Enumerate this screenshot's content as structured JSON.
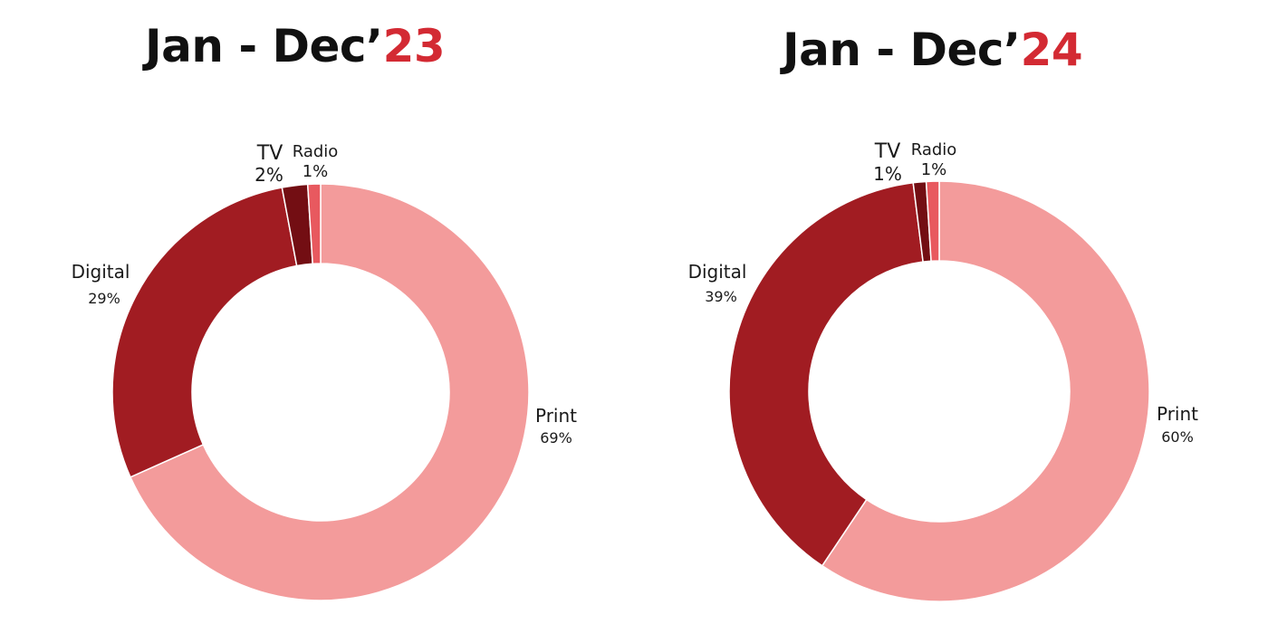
{
  "chart_data": [
    {
      "type": "pie",
      "title_prefix": "Jan - Dec’",
      "title_year": "23",
      "colors": {
        "Print": "#f39b9b",
        "Digital": "#a11c22",
        "TV": "#730e13",
        "Radio": "#e8595f"
      },
      "slices": [
        {
          "name": "Print",
          "value": 69,
          "label": "69%"
        },
        {
          "name": "Digital",
          "value": 29,
          "label": "29%"
        },
        {
          "name": "TV",
          "value": 2,
          "label": "2%"
        },
        {
          "name": "Radio",
          "value": 1,
          "label": "1%"
        }
      ]
    },
    {
      "type": "pie",
      "title_prefix": "Jan - Dec’",
      "title_year": "24",
      "colors": {
        "Print": "#f39b9b",
        "Digital": "#a11c22",
        "TV": "#730e13",
        "Radio": "#e8595f"
      },
      "slices": [
        {
          "name": "Print",
          "value": 60,
          "label": "60%"
        },
        {
          "name": "Digital",
          "value": 39,
          "label": "39%"
        },
        {
          "name": "TV",
          "value": 1,
          "label": "1%"
        },
        {
          "name": "Radio",
          "value": 1,
          "label": "1%"
        }
      ]
    }
  ]
}
